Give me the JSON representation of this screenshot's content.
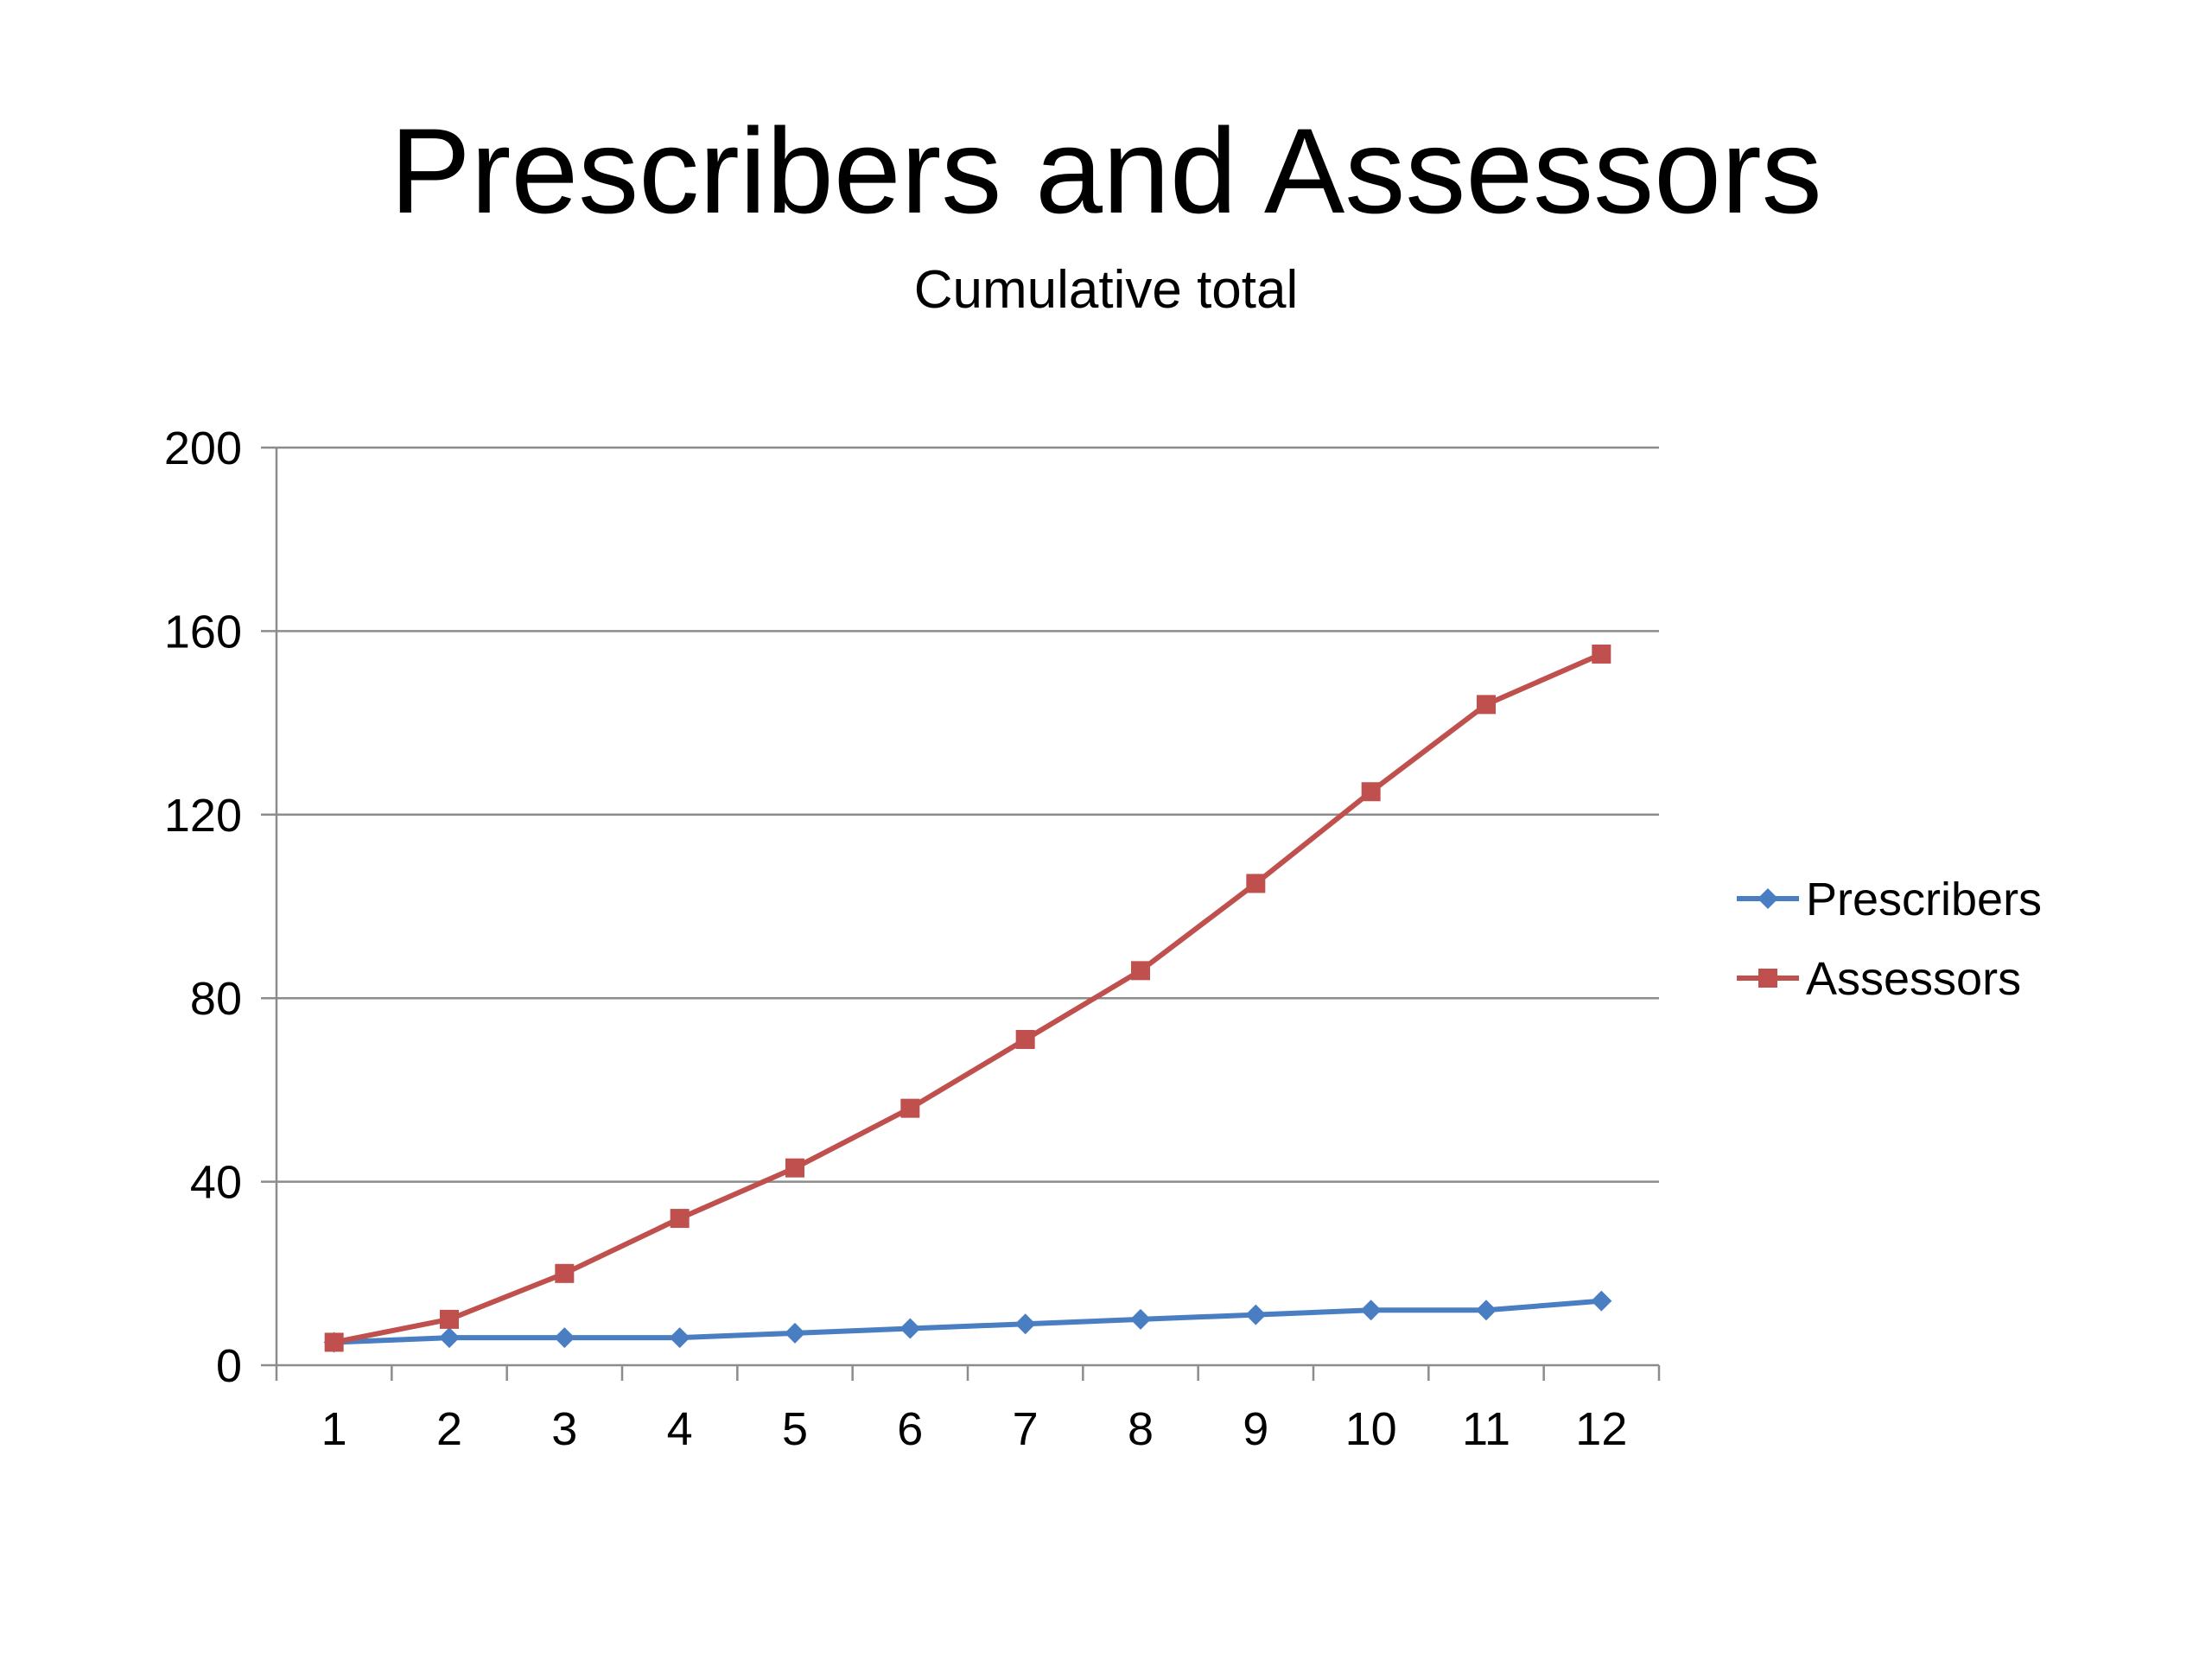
{
  "chart_data": {
    "type": "line",
    "title": "Prescribers and Assessors",
    "subtitle": "Cumulative total",
    "xlabel": "",
    "ylabel": "",
    "categories": [
      "1",
      "2",
      "3",
      "4",
      "5",
      "6",
      "7",
      "8",
      "9",
      "10",
      "11",
      "12"
    ],
    "yticks": [
      "0",
      "40",
      "80",
      "120",
      "160",
      "200"
    ],
    "ylim": [
      0,
      200
    ],
    "grid": "horizontal",
    "legend_position": "right",
    "series": [
      {
        "name": "Prescribers",
        "color": "#4A7EC2",
        "marker": "diamond",
        "values": [
          5,
          6,
          6,
          6,
          7,
          8,
          9,
          10,
          11,
          12,
          12,
          14
        ]
      },
      {
        "name": "Assessors",
        "color": "#C0504D",
        "marker": "square",
        "values": [
          5,
          10,
          20,
          32,
          43,
          56,
          71,
          86,
          105,
          125,
          144,
          155
        ]
      }
    ]
  }
}
